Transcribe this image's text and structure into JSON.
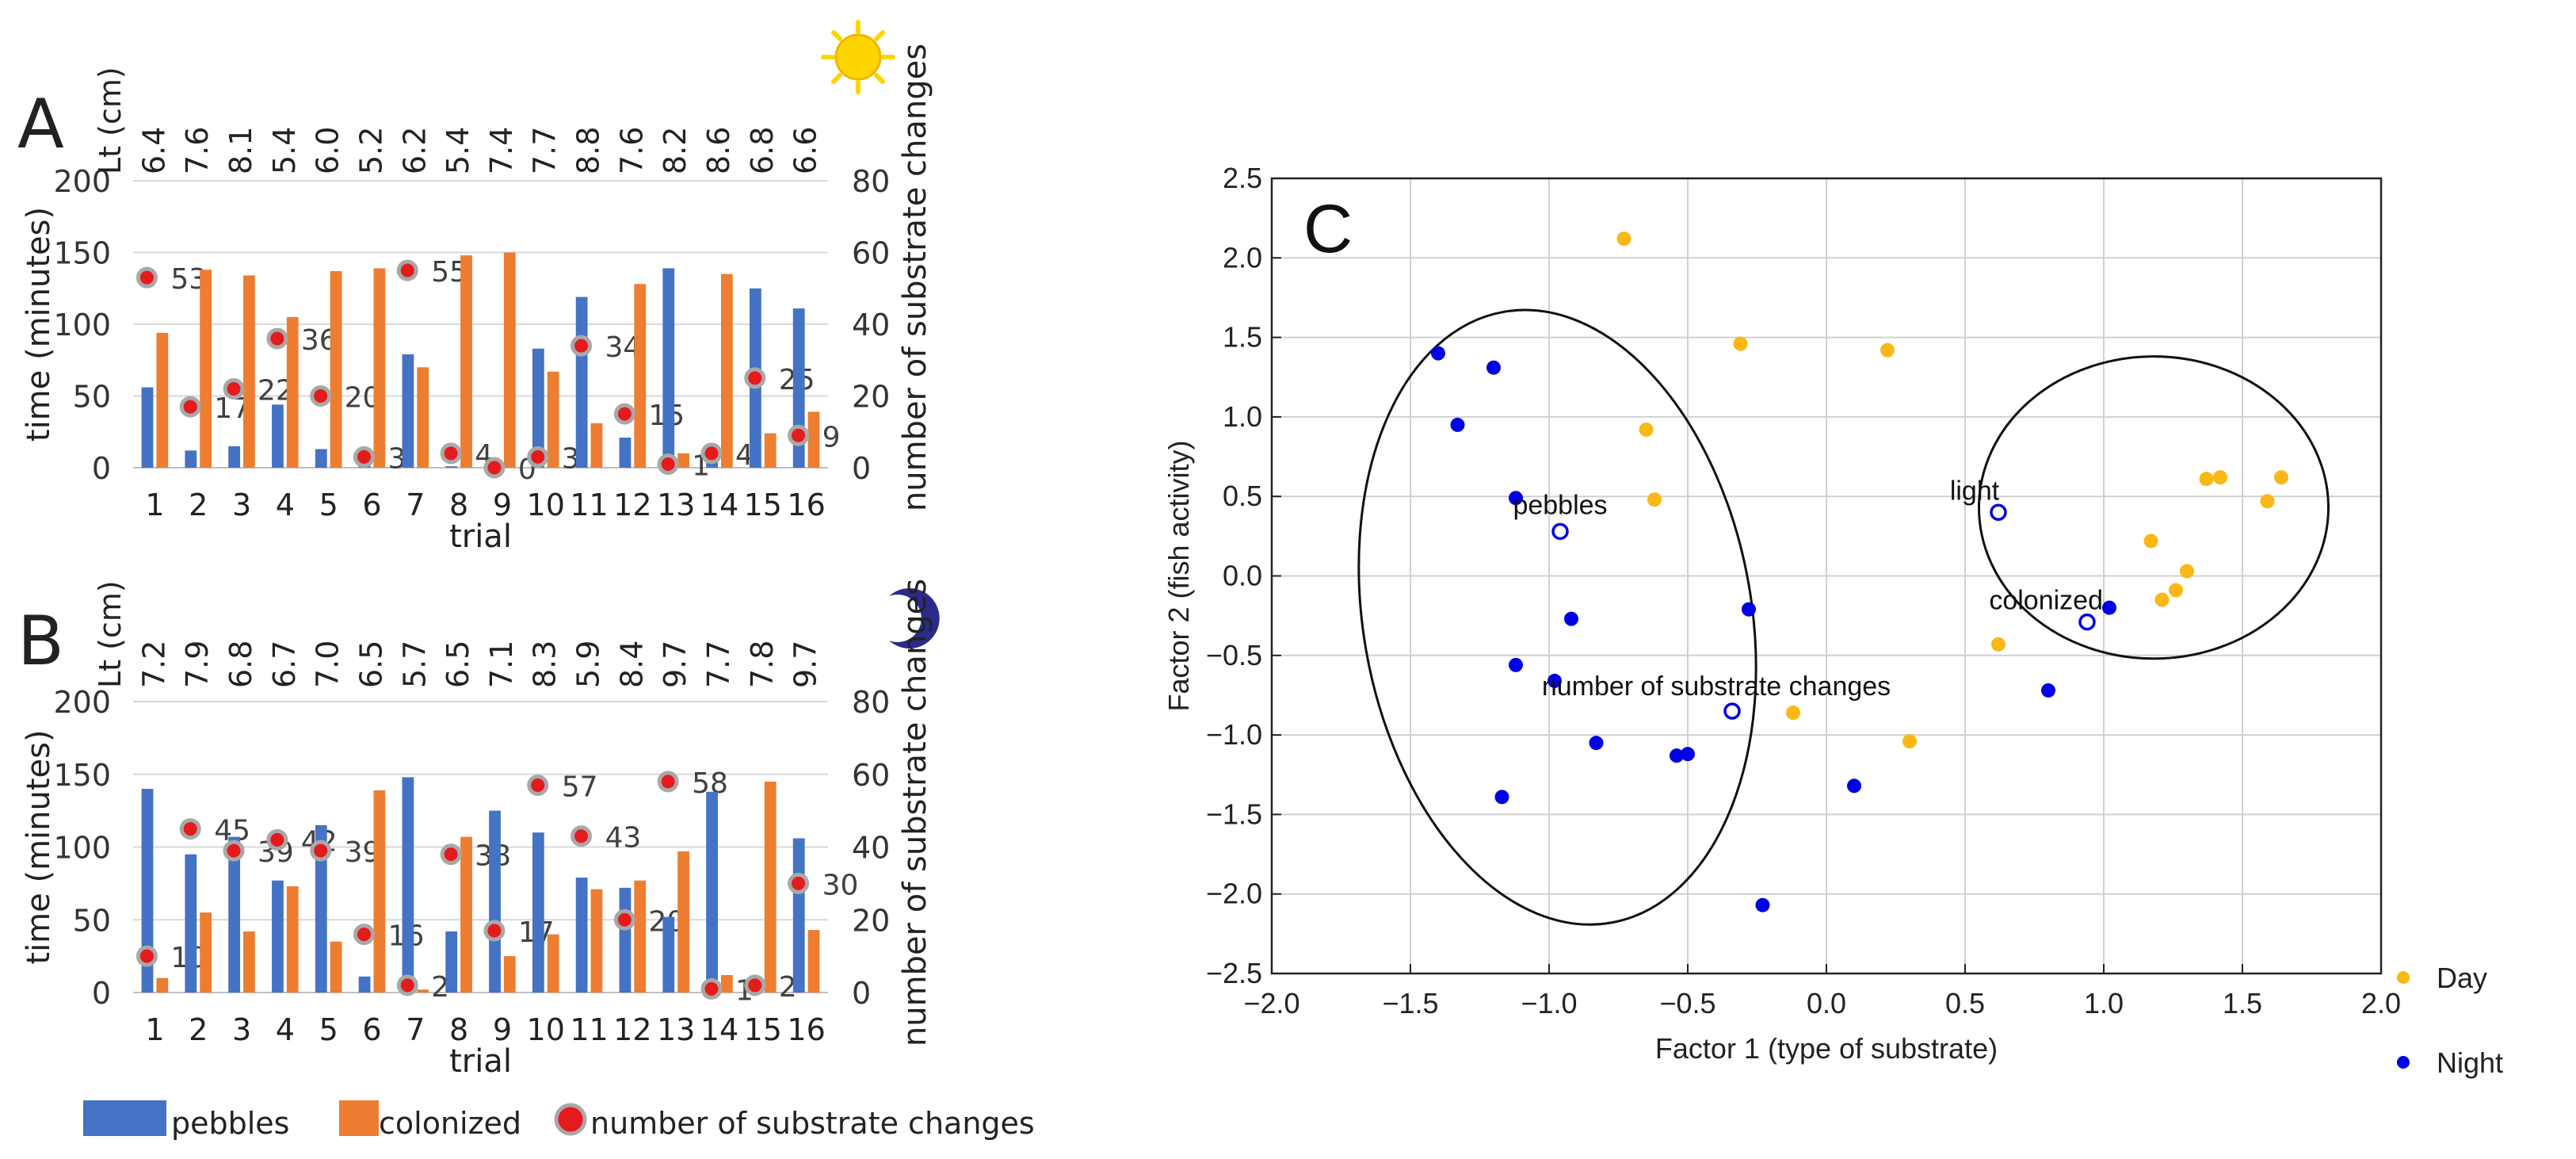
{
  "colors": {
    "pebbles": "#4472C4",
    "colonized": "#ED7D31",
    "marker_fill": "#E41A1C",
    "marker_ring": "#A8A8A8",
    "day": "#FBB714",
    "night": "#0000E6",
    "sun": "#FFD500",
    "moon": "#2B2B8C",
    "grid": "#D0D0D0",
    "text": "#333333"
  },
  "icons": {
    "day": "sun-icon",
    "night": "moon-icon"
  },
  "legend": {
    "pebbles": "pebbles",
    "colonized": "colonized",
    "changes": "number of substrate changes"
  },
  "chart_data": [
    {
      "panel": "A",
      "type": "bar",
      "condition": "day",
      "xlabel": "trial",
      "ylabel": "time (minutes)",
      "y2label": "number of substrate changes",
      "toplabel": "Lt (cm)",
      "categories": [
        "1",
        "2",
        "3",
        "4",
        "5",
        "6",
        "7",
        "8",
        "9",
        "10",
        "11",
        "12",
        "13",
        "14",
        "15",
        "16"
      ],
      "lt": [
        "6.4",
        "7.6",
        "8.1",
        "5.4",
        "6.0",
        "5.2",
        "6.2",
        "5.4",
        "7.4",
        "7.7",
        "8.8",
        "7.6",
        "8.2",
        "8.6",
        "6.8",
        "6.6"
      ],
      "ylim": [
        0,
        200
      ],
      "yticks": [
        0,
        50,
        100,
        150,
        200
      ],
      "y2lim": [
        0,
        80
      ],
      "y2ticks": [
        0,
        20,
        40,
        60,
        80
      ],
      "series": [
        {
          "name": "pebbles",
          "values": [
            56,
            12,
            15,
            44,
            13,
            11,
            79,
            1,
            0,
            83,
            119,
            21,
            139,
            13,
            125,
            111
          ]
        },
        {
          "name": "colonized",
          "values": [
            94,
            138,
            134,
            105,
            137,
            139,
            70,
            148,
            150,
            67,
            31,
            128,
            10,
            135,
            24,
            39
          ]
        }
      ],
      "changes": [
        53,
        17,
        22,
        36,
        20,
        3,
        55,
        4,
        0,
        3,
        34,
        15,
        1,
        4,
        25,
        9
      ]
    },
    {
      "panel": "B",
      "type": "bar",
      "condition": "night",
      "xlabel": "trial",
      "ylabel": "time (minutes)",
      "y2label": "number of substrate changes",
      "toplabel": "Lt (cm)",
      "categories": [
        "1",
        "2",
        "3",
        "4",
        "5",
        "6",
        "7",
        "8",
        "9",
        "10",
        "11",
        "12",
        "13",
        "14",
        "15",
        "16"
      ],
      "lt": [
        "7.2",
        "7.9",
        "6.8",
        "6.7",
        "7.0",
        "6.5",
        "5.7",
        "6.5",
        "7.1",
        "8.3",
        "5.9",
        "8.4",
        "9.7",
        "7.7",
        "7.8",
        "9.7"
      ],
      "ylim": [
        0,
        200
      ],
      "yticks": [
        0,
        50,
        100,
        150,
        200
      ],
      "y2lim": [
        0,
        80
      ],
      "y2ticks": [
        0,
        20,
        40,
        60,
        80
      ],
      "series": [
        {
          "name": "pebbles",
          "values": [
            140,
            95,
            107,
            77,
            115,
            11,
            148,
            42,
            125,
            110,
            79,
            72,
            52,
            138,
            5,
            106
          ]
        },
        {
          "name": "colonized",
          "values": [
            10,
            55,
            42,
            73,
            35,
            139,
            2,
            107,
            25,
            40,
            71,
            77,
            97,
            12,
            145,
            43
          ]
        }
      ],
      "changes": [
        10,
        45,
        39,
        42,
        39,
        16,
        2,
        38,
        17,
        57,
        43,
        20,
        58,
        1,
        2,
        30
      ]
    },
    {
      "panel": "C",
      "type": "scatter",
      "xlabel": "Factor 1 (type of substrate)",
      "ylabel": "Factor 2 (fish activity)",
      "xlim": [
        -2.0,
        2.0
      ],
      "ylim": [
        -2.5,
        2.5
      ],
      "xticks": [
        "−2.0",
        "−1.5",
        "−1.0",
        "−0.5",
        "0.0",
        "0.5",
        "1.0",
        "1.5",
        "2.0"
      ],
      "yticks": [
        "2.5",
        "2.0",
        "1.5",
        "1.0",
        "0.5",
        "0.0",
        "−0.5",
        "−1.0",
        "−1.5",
        "−2.0",
        "−2.5"
      ],
      "legend": [
        "Day",
        "Night"
      ],
      "series": [
        {
          "name": "Day",
          "points": [
            [
              -0.73,
              2.12
            ],
            [
              -0.31,
              1.46
            ],
            [
              0.22,
              1.42
            ],
            [
              -0.65,
              0.92
            ],
            [
              -0.62,
              0.48
            ],
            [
              1.37,
              0.61
            ],
            [
              1.42,
              0.62
            ],
            [
              1.64,
              0.62
            ],
            [
              1.59,
              0.47
            ],
            [
              1.17,
              0.22
            ],
            [
              1.3,
              0.03
            ],
            [
              1.26,
              -0.09
            ],
            [
              1.21,
              -0.15
            ],
            [
              0.62,
              -0.43
            ],
            [
              -0.12,
              -0.86
            ],
            [
              0.3,
              -1.04
            ]
          ]
        },
        {
          "name": "Night",
          "points": [
            [
              -1.4,
              1.4
            ],
            [
              -1.2,
              1.31
            ],
            [
              -1.33,
              0.95
            ],
            [
              -1.12,
              0.49
            ],
            [
              -0.92,
              -0.27
            ],
            [
              -1.12,
              -0.56
            ],
            [
              -0.98,
              -0.66
            ],
            [
              -0.28,
              -0.21
            ],
            [
              1.02,
              -0.2
            ],
            [
              0.8,
              -0.72
            ],
            [
              -0.83,
              -1.05
            ],
            [
              -0.54,
              -1.13
            ],
            [
              -0.5,
              -1.12
            ],
            [
              0.1,
              -1.32
            ],
            [
              -1.17,
              -1.39
            ],
            [
              -0.23,
              -2.07
            ]
          ]
        }
      ],
      "variables": [
        {
          "label": "light",
          "x": 0.62,
          "y": 0.4
        },
        {
          "label": "pebbles",
          "x": -0.96,
          "y": 0.28
        },
        {
          "label": "colonized",
          "x": 0.94,
          "y": -0.29
        },
        {
          "label": "number of substrate changes",
          "x": -0.34,
          "y": -0.85
        }
      ],
      "ellipses": [
        {
          "center": [
            -0.97,
            -0.26
          ],
          "rx": 0.7,
          "ry": 1.95,
          "angle": -10
        },
        {
          "center": [
            1.18,
            0.43
          ],
          "rx": 0.63,
          "ry": 0.95,
          "angle": 0
        }
      ]
    }
  ]
}
